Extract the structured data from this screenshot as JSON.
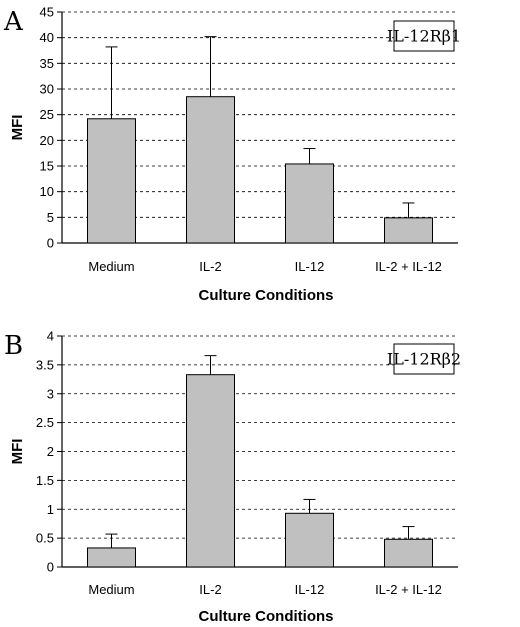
{
  "chart_data": [
    {
      "type": "bar",
      "panel": "A",
      "legend": "IL-12Rβ1",
      "xlabel": "Culture  Conditions",
      "ylabel": "MFI",
      "categories": [
        "Medium",
        "IL-2",
        "IL-12",
        "IL-2 + IL-12"
      ],
      "values": [
        24.2,
        28.5,
        15.4,
        4.9
      ],
      "errors": [
        14.0,
        11.7,
        3.0,
        2.9
      ],
      "ylim": [
        0,
        45
      ],
      "yticks": [
        "0",
        "5",
        "10",
        "15",
        "20",
        "25",
        "30",
        "35",
        "40",
        "45"
      ],
      "grid": true,
      "legend_position": "top-right",
      "bar_color": "#c0c0c0"
    },
    {
      "type": "bar",
      "panel": "B",
      "legend": "IL-12Rβ2",
      "xlabel": "Culture  Conditions",
      "ylabel": "MFI",
      "categories": [
        "Medium",
        "IL-2",
        "IL-12",
        "IL-2 + IL-12"
      ],
      "values": [
        0.33,
        3.33,
        0.93,
        0.48
      ],
      "errors": [
        0.24,
        0.33,
        0.24,
        0.22
      ],
      "ylim": [
        0,
        4
      ],
      "yticks": [
        "0",
        "0.5",
        "1",
        "1.5",
        "2",
        "2.5",
        "3",
        "3.5",
        "4"
      ],
      "grid": true,
      "legend_position": "top-right",
      "bar_color": "#c0c0c0"
    }
  ]
}
